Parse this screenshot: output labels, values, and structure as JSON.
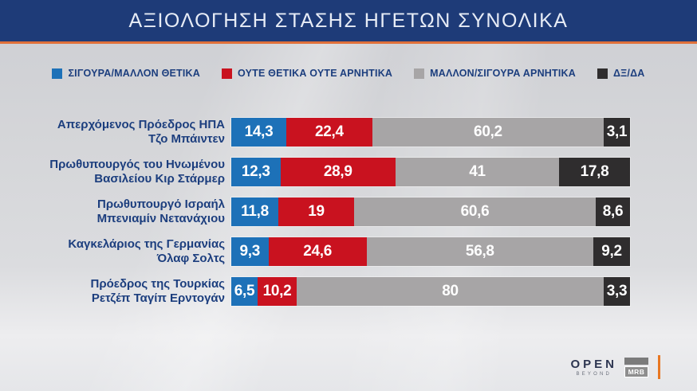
{
  "header": {
    "title": "ΑΞΙΟΛΟΓΗΣΗ ΣΤΑΣΗΣ ΗΓΕΤΩΝ ΣΥΝΟΛΙΚΑ"
  },
  "colors": {
    "banner": "#1e3b78",
    "banner_underline": "#e0703a",
    "label_text": "#1c3e7e",
    "value_text": "#ffffff"
  },
  "legend": [
    {
      "label": "ΣΙΓΟΥΡΑ/ΜΑΛΛΟΝ ΘΕΤΙΚΑ",
      "color": "#1d71b8",
      "icon": "swatch-blue-icon"
    },
    {
      "label": "ΟΥΤΕ ΘΕΤΙΚΑ ΟΥΤΕ ΑΡΝΗΤΙΚΑ",
      "color": "#c9121f",
      "icon": "swatch-red-icon"
    },
    {
      "label": "ΜΑΛΛΟΝ/ΣΙΓΟΥΡΑ ΑΡΝΗΤΙΚΑ",
      "color": "#a7a5a6",
      "icon": "swatch-gray-icon"
    },
    {
      "label": "ΔΞ/ΔΑ",
      "color": "#2f2d2e",
      "icon": "swatch-dark-icon"
    }
  ],
  "chart_data": {
    "type": "bar",
    "orientation": "horizontal",
    "stacked": true,
    "unit": "%",
    "xlim": [
      0,
      100
    ],
    "title": "ΑΞΙΟΛΟΓΗΣΗ ΣΤΑΣΗΣ ΗΓΕΤΩΝ ΣΥΝΟΛΙΚΑ",
    "legend_position": "top",
    "segment_colors": [
      "#1d71b8",
      "#c9121f",
      "#a7a5a6",
      "#2f2d2e"
    ],
    "categories": [
      "Απερχόμενος Πρόεδρος ΗΠΑ Τζο Μπάιντεν",
      "Πρωθυπουργός του Ηνωμένου Βασιλείου Κιρ Στάρμερ",
      "Πρωθυπουργό Ισραήλ Μπενιαμίν Νετανάχιου",
      "Καγκελάριος της Γερμανίας Όλαφ Σολτς",
      "Πρόεδρος της Τουρκίας Ρετζέπ Ταγίπ Ερντογάν"
    ],
    "series": [
      {
        "name": "ΣΙΓΟΥΡΑ/ΜΑΛΛΟΝ ΘΕΤΙΚΑ",
        "color": "#1d71b8",
        "values": [
          14.3,
          12.3,
          11.8,
          9.3,
          6.5
        ]
      },
      {
        "name": "ΟΥΤΕ ΘΕΤΙΚΑ ΟΥΤΕ ΑΡΝΗΤΙΚΑ",
        "color": "#c9121f",
        "values": [
          22.4,
          28.9,
          19,
          24.6,
          10.2
        ]
      },
      {
        "name": "ΜΑΛΛΟΝ/ΣΙΓΟΥΡΑ ΑΡΝΗΤΙΚΑ",
        "color": "#a7a5a6",
        "values": [
          60.2,
          41,
          60.6,
          56.8,
          80
        ]
      },
      {
        "name": "ΔΞ/ΔΑ",
        "color": "#2f2d2e",
        "values": [
          3.1,
          17.8,
          8.6,
          9.2,
          3.3
        ]
      }
    ],
    "rows": [
      {
        "label_lines": [
          "Απερχόμενος Πρόεδρος ΗΠΑ",
          "Τζο Μπάιντεν"
        ],
        "segments": [
          {
            "value": 14.3,
            "display": "14,3"
          },
          {
            "value": 22.4,
            "display": "22,4"
          },
          {
            "value": 60.2,
            "display": "60,2"
          },
          {
            "value": 3.1,
            "display": "3,1"
          }
        ]
      },
      {
        "label_lines": [
          "Πρωθυπουργός του Ηνωμένου",
          "Βασιλείου Κιρ Στάρμερ"
        ],
        "segments": [
          {
            "value": 12.3,
            "display": "12,3"
          },
          {
            "value": 28.9,
            "display": "28,9"
          },
          {
            "value": 41,
            "display": "41"
          },
          {
            "value": 17.8,
            "display": "17,8"
          }
        ]
      },
      {
        "label_lines": [
          "Πρωθυπουργό Ισραήλ",
          "Μπενιαμίν Νετανάχιου"
        ],
        "segments": [
          {
            "value": 11.8,
            "display": "11,8"
          },
          {
            "value": 19,
            "display": "19"
          },
          {
            "value": 60.6,
            "display": "60,6"
          },
          {
            "value": 8.6,
            "display": "8,6"
          }
        ]
      },
      {
        "label_lines": [
          "Καγκελάριος της Γερμανίας",
          "Όλαφ Σολτς"
        ],
        "segments": [
          {
            "value": 9.3,
            "display": "9,3"
          },
          {
            "value": 24.6,
            "display": "24,6"
          },
          {
            "value": 56.8,
            "display": "56,8"
          },
          {
            "value": 9.2,
            "display": "9,2"
          }
        ]
      },
      {
        "label_lines": [
          "Πρόεδρος της Τουρκίας",
          "Ρετζέπ Ταγίπ Ερντογάν"
        ],
        "segments": [
          {
            "value": 6.5,
            "display": "6,5"
          },
          {
            "value": 10.2,
            "display": "10,2"
          },
          {
            "value": 80,
            "display": "80"
          },
          {
            "value": 3.3,
            "display": "3,3"
          }
        ]
      }
    ]
  },
  "footer": {
    "open_label": "OPEN",
    "open_sub": "BEYOND",
    "mrb_label": "MRB"
  }
}
